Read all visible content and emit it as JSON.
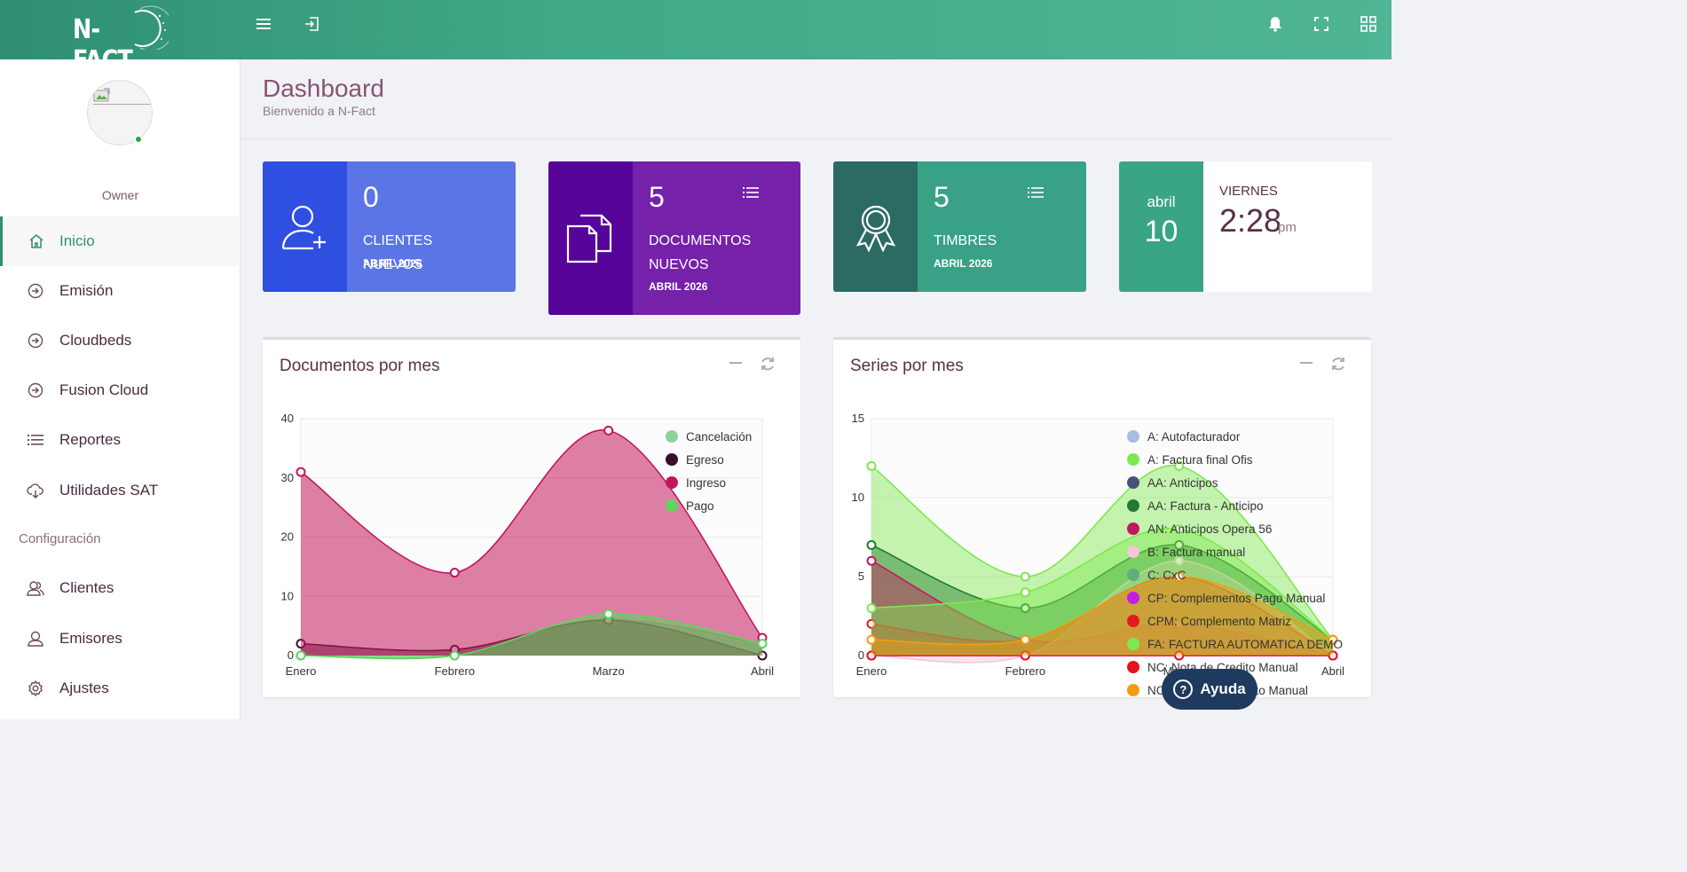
{
  "app": {
    "logo_text": "N-FACT",
    "brand_color": "#3aa487"
  },
  "topbar": {
    "icons": [
      "menu-icon",
      "logout-icon",
      "bell-icon",
      "fullscreen-icon",
      "apps-grid-icon"
    ]
  },
  "sidebar": {
    "user_role": "Owner",
    "items": [
      {
        "label": "Inicio",
        "icon": "home-icon",
        "active": true
      },
      {
        "label": "Emisión",
        "icon": "arrow-circle-icon"
      },
      {
        "label": "Cloudbeds",
        "icon": "arrow-circle-icon"
      },
      {
        "label": "Fusion Cloud",
        "icon": "arrow-circle-icon"
      },
      {
        "label": "Reportes",
        "icon": "list-icon"
      },
      {
        "label": "Utilidades SAT",
        "icon": "cloud-download-icon"
      }
    ],
    "section_label": "Configuración",
    "config_items": [
      {
        "label": "Clientes",
        "icon": "users-icon"
      },
      {
        "label": "Emisores",
        "icon": "user-icon"
      },
      {
        "label": "Ajustes",
        "icon": "gear-icon"
      }
    ]
  },
  "header": {
    "title": "Dashboard",
    "subtitle": "Bienvenido a N-Fact"
  },
  "cards": [
    {
      "value": "0",
      "label": "CLIENTES NUEVOS",
      "period": "ABRIL 2026",
      "icon": "user-add-icon",
      "color_left": "#2e4fe0",
      "color_right": "#5b75e6"
    },
    {
      "value": "5",
      "label": "DOCUMENTOS NUEVOS",
      "period": "ABRIL 2026",
      "icon": "documents-icon",
      "color_left": "#56049a",
      "color_right": "#7621aa"
    },
    {
      "value": "5",
      "label": "TIMBRES",
      "period": "ABRIL 2026",
      "icon": "award-icon",
      "color_left": "#2c6b63",
      "color_right": "#39a185"
    }
  ],
  "clock": {
    "month": "abril",
    "day": "10",
    "weekday": "VIERNES",
    "time": "2:28",
    "ampm": "pm"
  },
  "panels": {
    "docs_title": "Documentos por mes",
    "series_title": "Series por mes"
  },
  "chart_data": [
    {
      "type": "area",
      "title": "Documentos por mes",
      "categories": [
        "Enero",
        "Febrero",
        "Marzo",
        "Abril"
      ],
      "ylim": [
        0,
        40
      ],
      "yticks": [
        0,
        10,
        20,
        30,
        40
      ],
      "legend_position": "top-right",
      "series": [
        {
          "name": "Cancelación",
          "color": "#8fd19e",
          "values": [
            0,
            0,
            6,
            2
          ]
        },
        {
          "name": "Egreso",
          "color": "#3a0f2a",
          "values": [
            2,
            1,
            6,
            0
          ]
        },
        {
          "name": "Ingreso",
          "color": "#c2185b",
          "values": [
            31,
            14,
            38,
            3
          ]
        },
        {
          "name": "Pago",
          "color": "#5cd65c",
          "values": [
            0,
            0,
            7,
            2
          ]
        }
      ]
    },
    {
      "type": "area",
      "title": "Series por mes",
      "categories": [
        "Enero",
        "Febrero",
        "Marzo",
        "Abril"
      ],
      "ylim": [
        0,
        15
      ],
      "yticks": [
        0,
        5,
        10,
        15
      ],
      "legend_position": "top-right",
      "series": [
        {
          "name": "A: Autofacturador",
          "color": "#a7bce0",
          "values": [
            0,
            0,
            0,
            0
          ]
        },
        {
          "name": "A: Factura final Ofis",
          "color": "#7ee84f",
          "values": [
            12,
            5,
            12,
            1
          ]
        },
        {
          "name": "AA: Anticipos",
          "color": "#4b4f7a",
          "values": [
            0,
            0,
            0,
            0
          ]
        },
        {
          "name": "AA: Factura - Anticipo",
          "color": "#237a2f",
          "values": [
            7,
            3,
            7,
            1
          ]
        },
        {
          "name": "AN: Anticipos Opera 56",
          "color": "#c2185b",
          "values": [
            6,
            1,
            2,
            0
          ]
        },
        {
          "name": "B: Factura manual",
          "color": "#f5c6d8",
          "values": [
            0,
            0,
            6,
            0
          ]
        },
        {
          "name": "C: CxC",
          "color": "#5fad7c",
          "values": [
            0,
            0,
            0,
            0
          ]
        },
        {
          "name": "CP: Complementos Pago Manual",
          "color": "#c41ce0",
          "values": [
            0,
            0,
            0,
            0
          ]
        },
        {
          "name": "CPM: Complemento Matriz",
          "color": "#e01c1c",
          "values": [
            2,
            1,
            5,
            0
          ]
        },
        {
          "name": "FA: FACTURA AUTOMATICA DEMO",
          "color": "#7ee84f",
          "values": [
            3,
            4,
            8,
            1
          ]
        },
        {
          "name": "NC: Nota de Credito Manual",
          "color": "#e8121c",
          "values": [
            0,
            0,
            0,
            0
          ]
        },
        {
          "name": "NCM: Nota de Credito Manual",
          "color": "#f39c12",
          "values": [
            1,
            1,
            5,
            1
          ]
        }
      ]
    }
  ],
  "help": {
    "label": "Ayuda"
  }
}
